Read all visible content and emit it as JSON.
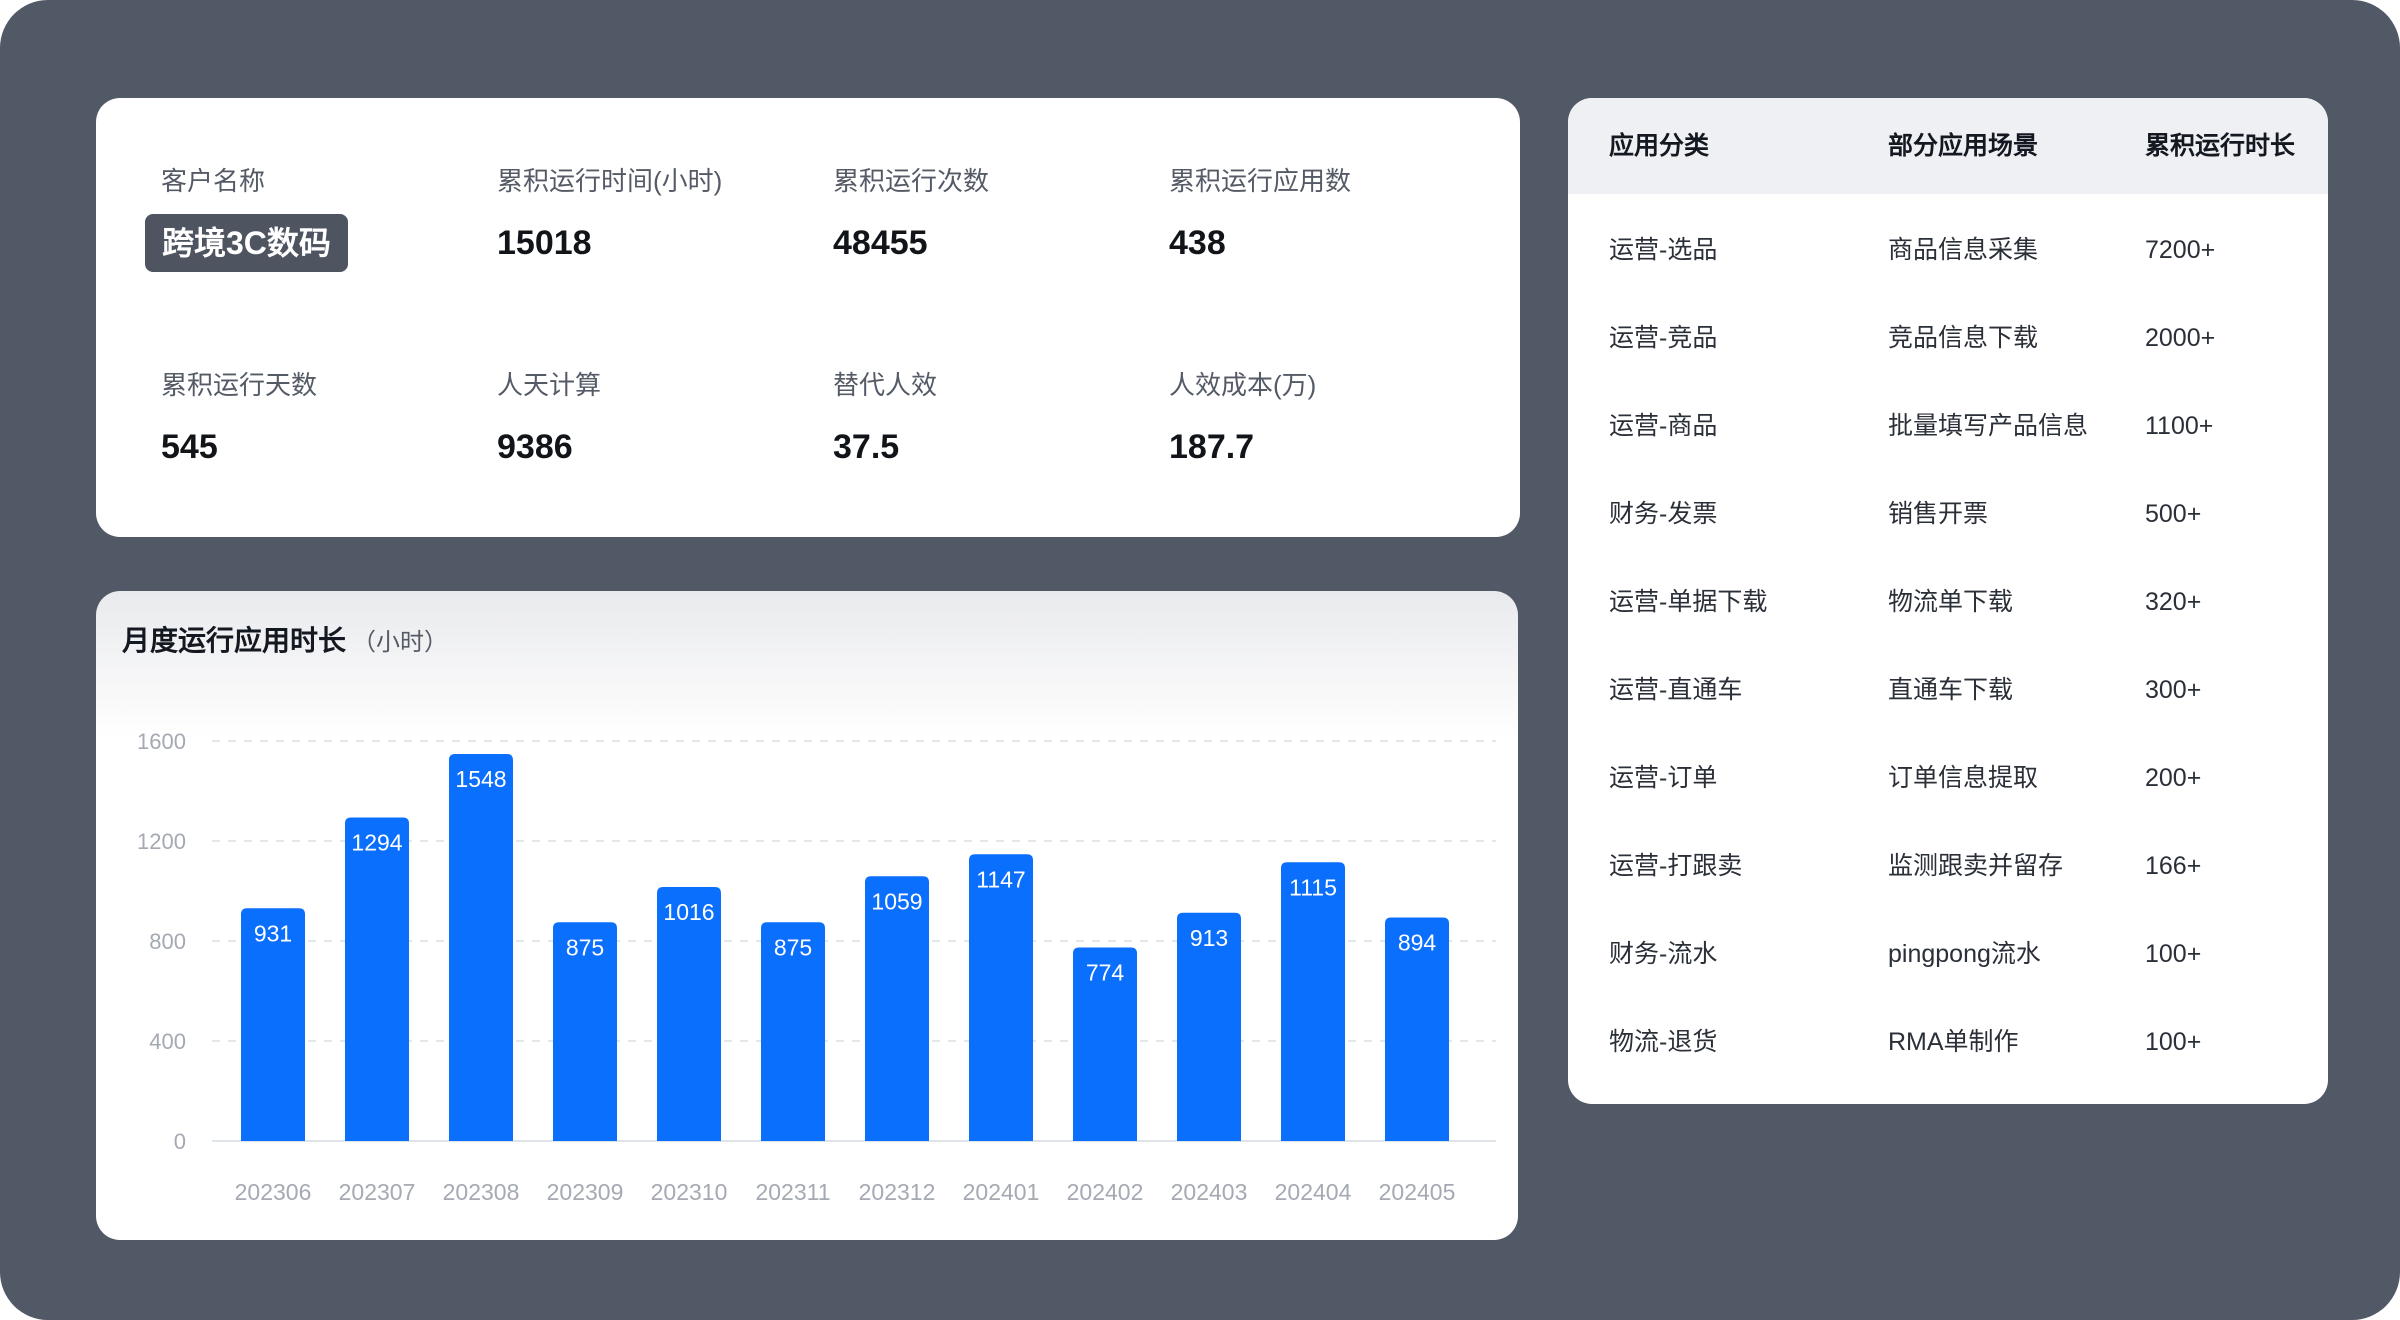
{
  "stats": {
    "customer": {
      "label": "客户名称",
      "value": "跨境3C数码"
    },
    "run_hours": {
      "label": "累积运行时间(小时)",
      "value": "15018"
    },
    "run_count": {
      "label": "累积运行次数",
      "value": "48455"
    },
    "app_count": {
      "label": "累积运行应用数",
      "value": "438"
    },
    "run_days": {
      "label": "累积运行天数",
      "value": "545"
    },
    "person_days": {
      "label": "人天计算",
      "value": "9386"
    },
    "replace_fte": {
      "label": "替代人效",
      "value": "37.5"
    },
    "fte_cost": {
      "label": "人效成本(万)",
      "value": "187.7"
    }
  },
  "chart": {
    "title": "月度运行应用时长",
    "unit": "（小时）"
  },
  "chart_data": {
    "type": "bar",
    "title": "月度运行应用时长（小时）",
    "xlabel": "",
    "ylabel": "",
    "categories": [
      "202306",
      "202307",
      "202308",
      "202309",
      "202310",
      "202311",
      "202312",
      "202401",
      "202402",
      "202403",
      "202404",
      "202405"
    ],
    "values": [
      931,
      1294,
      1548,
      875,
      1016,
      875,
      1059,
      1147,
      774,
      913,
      1115,
      894
    ],
    "ylim": [
      0,
      1600
    ],
    "yticks": [
      0,
      400,
      800,
      1200,
      1600
    ],
    "grid": true,
    "legend": "none",
    "bar_color": "#0b6ffd"
  },
  "table": {
    "headers": [
      "应用分类",
      "部分应用场景",
      "累积运行时长"
    ],
    "rows": [
      [
        "运营-选品",
        "商品信息采集",
        "7200+"
      ],
      [
        "运营-竞品",
        "竞品信息下载",
        "2000+"
      ],
      [
        "运营-商品",
        "批量填写产品信息",
        "1100+"
      ],
      [
        "财务-发票",
        "销售开票",
        "500+"
      ],
      [
        "运营-单据下载",
        "物流单下载",
        "320+"
      ],
      [
        "运营-直通车",
        "直通车下载",
        "300+"
      ],
      [
        "运营-订单",
        "订单信息提取",
        "200+"
      ],
      [
        "运营-打跟卖",
        "监测跟卖并留存",
        "166+"
      ],
      [
        "财务-流水",
        "pingpong流水",
        "100+"
      ],
      [
        "物流-退货",
        "RMA单制作",
        "100+"
      ]
    ]
  },
  "colors": {
    "frame": "#515866",
    "card": "#ffffff",
    "accent": "#0b6ffd",
    "badge": "#4e5561"
  }
}
